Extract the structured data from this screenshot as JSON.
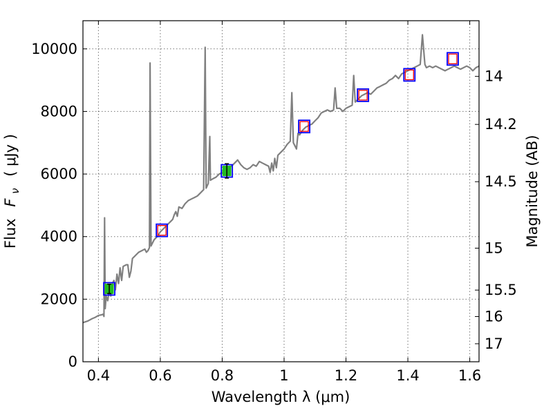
{
  "chart_data": {
    "type": "line",
    "xlabel": "Wavelength  λ (μm)",
    "ylabel_left": {
      "prefix": "Flux",
      "symbol": "F",
      "subscript": "ν",
      "unit": "( μJy )"
    },
    "ylabel_right": "Magnitude (AB)",
    "xlim": [
      0.35,
      1.63
    ],
    "ylim": [
      0,
      10900
    ],
    "x_ticks": [
      0.4,
      0.6,
      0.8,
      1.0,
      1.2,
      1.4,
      1.6
    ],
    "x_tick_labels": [
      "0.4",
      "0.6",
      "0.8",
      "1",
      "1.2",
      "1.4",
      "1.6"
    ],
    "y_ticks": [
      0,
      2000,
      4000,
      6000,
      8000,
      10000
    ],
    "y_tick_labels": [
      "0",
      "2000",
      "4000",
      "6000",
      "8000",
      "10000"
    ],
    "right_ticks": [
      {
        "label": "14",
        "mag": 14.0
      },
      {
        "label": "14.2",
        "mag": 14.2
      },
      {
        "label": "14.5",
        "mag": 14.5
      },
      {
        "label": "15",
        "mag": 15.0
      },
      {
        "label": "15.5",
        "mag": 15.5
      },
      {
        "label": "16",
        "mag": 16.0
      },
      {
        "label": "17",
        "mag": 17.0
      }
    ],
    "grid": true,
    "colors": {
      "spectrum": "#808080",
      "model_marker": "#0000ff",
      "observed_marker": "#ff0000",
      "detected_fill": "#22bb22"
    },
    "spectrum": [
      [
        0.35,
        1250
      ],
      [
        0.365,
        1300
      ],
      [
        0.38,
        1380
      ],
      [
        0.39,
        1420
      ],
      [
        0.4,
        1480
      ],
      [
        0.41,
        1500
      ],
      [
        0.415,
        1520
      ],
      [
        0.418,
        1450
      ],
      [
        0.42,
        4600
      ],
      [
        0.422,
        1700
      ],
      [
        0.425,
        2100
      ],
      [
        0.43,
        1950
      ],
      [
        0.435,
        2300
      ],
      [
        0.44,
        2100
      ],
      [
        0.445,
        2500
      ],
      [
        0.45,
        2600
      ],
      [
        0.455,
        2300
      ],
      [
        0.46,
        2800
      ],
      [
        0.465,
        2500
      ],
      [
        0.47,
        3000
      ],
      [
        0.475,
        2600
      ],
      [
        0.48,
        3050
      ],
      [
        0.49,
        3100
      ],
      [
        0.495,
        3100
      ],
      [
        0.5,
        2700
      ],
      [
        0.505,
        2900
      ],
      [
        0.51,
        3300
      ],
      [
        0.52,
        3400
      ],
      [
        0.53,
        3500
      ],
      [
        0.54,
        3550
      ],
      [
        0.55,
        3600
      ],
      [
        0.555,
        3500
      ],
      [
        0.56,
        3550
      ],
      [
        0.565,
        3650
      ],
      [
        0.567,
        9550
      ],
      [
        0.57,
        3700
      ],
      [
        0.575,
        3800
      ],
      [
        0.58,
        3900
      ],
      [
        0.59,
        4000
      ],
      [
        0.6,
        4150
      ],
      [
        0.61,
        4250
      ],
      [
        0.62,
        4350
      ],
      [
        0.63,
        4450
      ],
      [
        0.64,
        4550
      ],
      [
        0.645,
        4700
      ],
      [
        0.65,
        4800
      ],
      [
        0.655,
        4650
      ],
      [
        0.66,
        4950
      ],
      [
        0.67,
        4900
      ],
      [
        0.68,
        5050
      ],
      [
        0.69,
        5150
      ],
      [
        0.7,
        5200
      ],
      [
        0.71,
        5250
      ],
      [
        0.72,
        5300
      ],
      [
        0.73,
        5400
      ],
      [
        0.74,
        5500
      ],
      [
        0.745,
        10050
      ],
      [
        0.748,
        5550
      ],
      [
        0.755,
        5700
      ],
      [
        0.76,
        7200
      ],
      [
        0.762,
        5800
      ],
      [
        0.77,
        5850
      ],
      [
        0.78,
        5900
      ],
      [
        0.79,
        6000
      ],
      [
        0.8,
        6050
      ],
      [
        0.81,
        6150
      ],
      [
        0.82,
        6200
      ],
      [
        0.83,
        6250
      ],
      [
        0.84,
        6350
      ],
      [
        0.85,
        6450
      ],
      [
        0.86,
        6300
      ],
      [
        0.87,
        6200
      ],
      [
        0.88,
        6150
      ],
      [
        0.89,
        6200
      ],
      [
        0.9,
        6300
      ],
      [
        0.91,
        6250
      ],
      [
        0.92,
        6400
      ],
      [
        0.93,
        6350
      ],
      [
        0.94,
        6300
      ],
      [
        0.95,
        6250
      ],
      [
        0.955,
        6050
      ],
      [
        0.96,
        6350
      ],
      [
        0.965,
        6100
      ],
      [
        0.97,
        6500
      ],
      [
        0.975,
        6200
      ],
      [
        0.98,
        6600
      ],
      [
        0.99,
        6700
      ],
      [
        1.0,
        6800
      ],
      [
        1.01,
        6950
      ],
      [
        1.02,
        7050
      ],
      [
        1.025,
        8600
      ],
      [
        1.03,
        7000
      ],
      [
        1.04,
        6800
      ],
      [
        1.045,
        7300
      ],
      [
        1.05,
        7250
      ],
      [
        1.06,
        7400
      ],
      [
        1.07,
        7500
      ],
      [
        1.08,
        7550
      ],
      [
        1.09,
        7600
      ],
      [
        1.1,
        7700
      ],
      [
        1.11,
        7800
      ],
      [
        1.12,
        7950
      ],
      [
        1.13,
        8000
      ],
      [
        1.14,
        8050
      ],
      [
        1.15,
        8000
      ],
      [
        1.16,
        8050
      ],
      [
        1.165,
        8750
      ],
      [
        1.17,
        8100
      ],
      [
        1.18,
        8100
      ],
      [
        1.19,
        8000
      ],
      [
        1.2,
        8100
      ],
      [
        1.21,
        8150
      ],
      [
        1.22,
        8200
      ],
      [
        1.225,
        9150
      ],
      [
        1.23,
        8300
      ],
      [
        1.24,
        8400
      ],
      [
        1.25,
        8500
      ],
      [
        1.26,
        8550
      ],
      [
        1.27,
        8600
      ],
      [
        1.28,
        8550
      ],
      [
        1.29,
        8650
      ],
      [
        1.3,
        8750
      ],
      [
        1.31,
        8800
      ],
      [
        1.32,
        8850
      ],
      [
        1.33,
        8900
      ],
      [
        1.34,
        9000
      ],
      [
        1.35,
        9050
      ],
      [
        1.36,
        9150
      ],
      [
        1.37,
        9050
      ],
      [
        1.38,
        9200
      ],
      [
        1.39,
        9250
      ],
      [
        1.4,
        9300
      ],
      [
        1.41,
        9350
      ],
      [
        1.42,
        9400
      ],
      [
        1.43,
        9450
      ],
      [
        1.44,
        9500
      ],
      [
        1.447,
        10450
      ],
      [
        1.455,
        9500
      ],
      [
        1.46,
        9400
      ],
      [
        1.47,
        9450
      ],
      [
        1.48,
        9400
      ],
      [
        1.49,
        9450
      ],
      [
        1.5,
        9400
      ],
      [
        1.51,
        9350
      ],
      [
        1.52,
        9300
      ],
      [
        1.53,
        9350
      ],
      [
        1.54,
        9400
      ],
      [
        1.55,
        9450
      ],
      [
        1.56,
        9400
      ],
      [
        1.57,
        9350
      ],
      [
        1.58,
        9400
      ],
      [
        1.59,
        9450
      ],
      [
        1.6,
        9400
      ],
      [
        1.61,
        9300
      ],
      [
        1.62,
        9400
      ],
      [
        1.63,
        9450
      ]
    ],
    "photometry": [
      {
        "x": 0.435,
        "y": 2330,
        "model": 2330,
        "detected": true,
        "err": 150
      },
      {
        "x": 0.605,
        "y": 4200,
        "model": 4200,
        "detected": false
      },
      {
        "x": 0.815,
        "y": 6100,
        "model": 6100,
        "detected": true,
        "err": 230
      },
      {
        "x": 1.065,
        "y": 7520,
        "model": 7520,
        "detected": false
      },
      {
        "x": 1.255,
        "y": 8520,
        "model": 8520,
        "detected": false
      },
      {
        "x": 1.405,
        "y": 9170,
        "model": 9170,
        "detected": false
      },
      {
        "x": 1.545,
        "y": 9680,
        "model": 9680,
        "detected": false
      }
    ]
  }
}
